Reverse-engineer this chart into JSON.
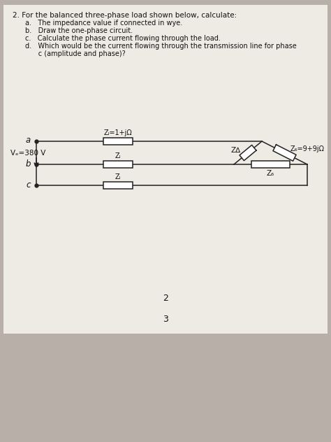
{
  "bg_color": "#b8b0a8",
  "paper_color": "#eeebe5",
  "question_number": "2.",
  "question_text": "For the balanced three-phase load shown below, calculate:",
  "sub_q_a": "a.   The impedance value if connected in wye.",
  "sub_q_b": "b.   Draw the one-phase circuit.",
  "sub_q_c": "c.   Calculate the phase current flowing through the load.",
  "sub_q_d1": "d.   Which would be the current flowing through the transmission line for phase",
  "sub_q_d2": "      c (amplitude and phase)?",
  "label_a": "a",
  "label_b": "b",
  "label_c": "c",
  "label_Vs": "Vₑ=380 V",
  "label_ZL_top": "Zₗ=1+jΩ",
  "label_ZL_mid": "Zₗ",
  "label_ZL_bot": "Zₗ",
  "label_ZA_left": "Z∆",
  "label_ZA_bot": "Z₆",
  "label_ZA_right": "Z₆=9+9jΩ",
  "page_num_2": "2",
  "page_num_3": "3",
  "text_color": "#111111",
  "line_color": "#222222"
}
